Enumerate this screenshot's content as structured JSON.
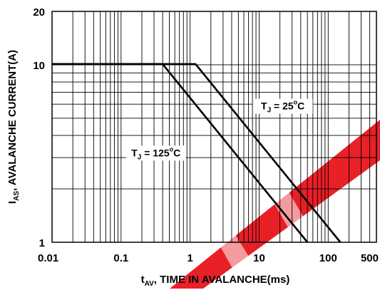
{
  "chart_data": {
    "type": "line",
    "title": "",
    "xlabel": {
      "main": "t",
      "sub": "AV",
      "rest": ", TIME IN AVALANCHE(ms)"
    },
    "ylabel": {
      "main": "I",
      "sub": "AS",
      "rest": ", AVALANCHE CURRENT(A)"
    },
    "x_scale": "log",
    "y_scale": "log",
    "xlim": [
      0.01,
      500
    ],
    "ylim": [
      1,
      20
    ],
    "x_ticks": [
      {
        "value": 0.01,
        "label": "0.01"
      },
      {
        "value": 0.1,
        "label": "0.1"
      },
      {
        "value": 1,
        "label": "1"
      },
      {
        "value": 10,
        "label": "10"
      },
      {
        "value": 100,
        "label": "100"
      },
      {
        "value": 500,
        "label": "500"
      }
    ],
    "y_ticks": [
      {
        "value": 1,
        "label": "1"
      },
      {
        "value": 10,
        "label": "10"
      },
      {
        "value": 20,
        "label": "20"
      }
    ],
    "grid": true,
    "legend": "none",
    "series": [
      {
        "label_main": "T",
        "label_sub": "J",
        "label_rest": " = 25",
        "label_sup": "o",
        "label_unit": "C",
        "label_at": {
          "x": 22,
          "y": 5.6
        },
        "points": [
          [
            0.01,
            10.1
          ],
          [
            1.2,
            10.1
          ],
          [
            150,
            1
          ]
        ]
      },
      {
        "label_main": "T",
        "label_sub": "J",
        "label_rest": " = 125",
        "label_sup": "o",
        "label_unit": "C",
        "label_at": {
          "x": 0.32,
          "y": 3.05
        },
        "points": [
          [
            0.01,
            10.1
          ],
          [
            0.4,
            10.1
          ],
          [
            50,
            1
          ]
        ]
      }
    ],
    "colors": {
      "line": "#000000",
      "grid": "#000000",
      "watermark": "#e8141b"
    }
  }
}
